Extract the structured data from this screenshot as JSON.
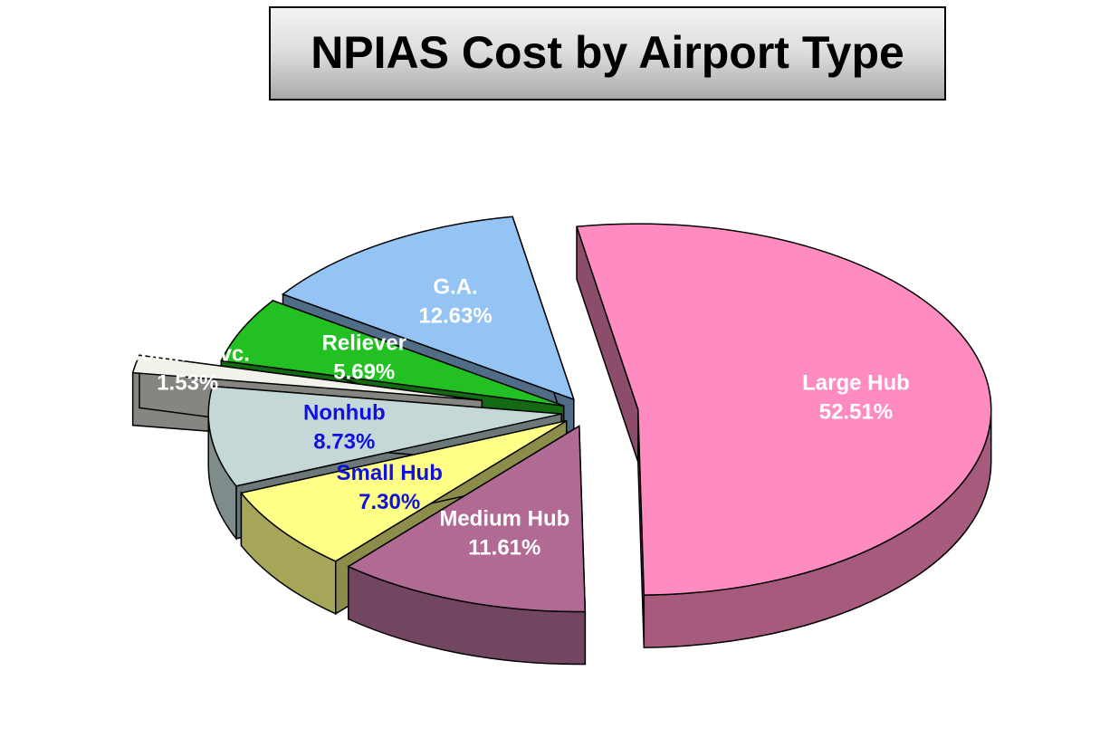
{
  "chart_data": {
    "type": "pie3d",
    "title": "NPIAS Cost by Airport Type",
    "categories": [
      "Large Hub",
      "Medium Hub",
      "Small Hub",
      "Nonhub",
      "Comm. Svc.",
      "Reliever",
      "G.A."
    ],
    "values": [
      52.51,
      11.61,
      7.3,
      8.73,
      1.53,
      5.69,
      12.63
    ],
    "value_labels": [
      "52.51%",
      "11.61%",
      "7.30%",
      "8.73%",
      "1.53%",
      "5.69%",
      "12.63%"
    ],
    "colors": [
      "#ff8cc0",
      "#b06a94",
      "#ffff88",
      "#c4d8d8",
      "#f2f2ea",
      "#22c022",
      "#94c4f4"
    ],
    "label_colors": [
      "#ffffff",
      "#ffffff",
      "#1010e0",
      "#1010e0",
      "#ffffff",
      "#ffffff",
      "#ffffff"
    ]
  }
}
